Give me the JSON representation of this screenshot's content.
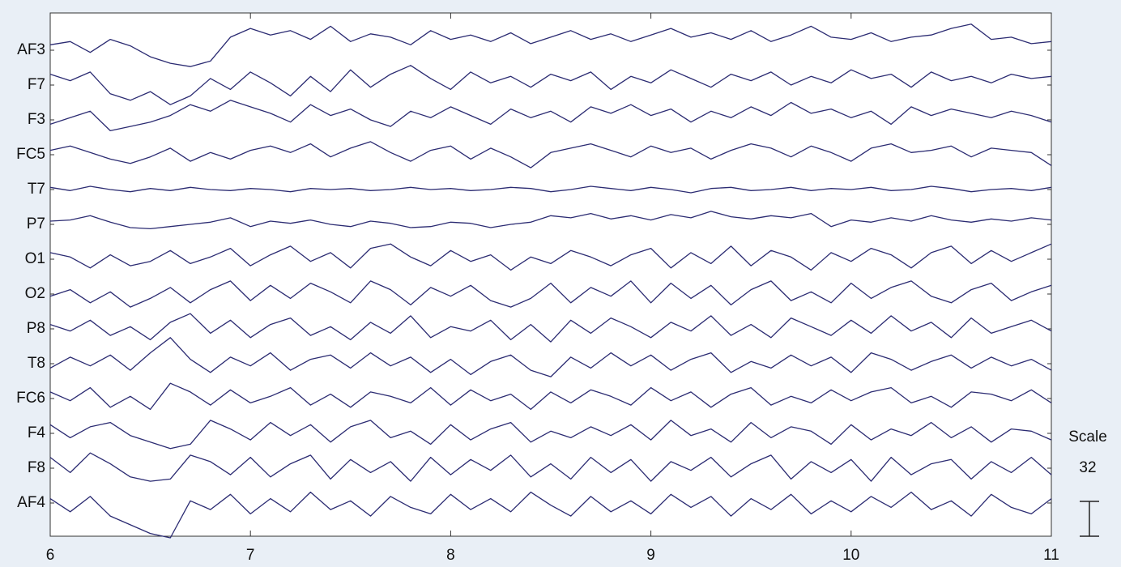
{
  "chart_data": {
    "type": "line",
    "color": "#2b2b72",
    "x": [
      6,
      6.1,
      6.2,
      6.3,
      6.4,
      6.5,
      6.6,
      6.7,
      6.8,
      6.9,
      7,
      7.1,
      7.2,
      7.3,
      7.4,
      7.5,
      7.6,
      7.7,
      7.8,
      7.9,
      8,
      8.1,
      8.2,
      8.3,
      8.4,
      8.5,
      8.6,
      8.7,
      8.8,
      8.9,
      9,
      9.1,
      9.2,
      9.3,
      9.4,
      9.5,
      9.6,
      9.7,
      9.8,
      9.9,
      10,
      10.1,
      10.2,
      10.3,
      10.4,
      10.5,
      10.6,
      10.7,
      10.8,
      10.9,
      11
    ],
    "xlim": [
      6,
      11
    ],
    "xticks": [
      6,
      7,
      8,
      9,
      10,
      11
    ],
    "scale": {
      "label": "Scale",
      "value": 32
    },
    "series": [
      {
        "name": "AF3",
        "values": [
          5,
          8,
          -2,
          10,
          4,
          -6,
          -12,
          -15,
          -10,
          12,
          20,
          14,
          18,
          10,
          22,
          8,
          15,
          12,
          5,
          18,
          10,
          14,
          8,
          16,
          6,
          12,
          18,
          10,
          15,
          8,
          14,
          20,
          12,
          16,
          10,
          18,
          8,
          14,
          22,
          12,
          10,
          16,
          8,
          12,
          14,
          20,
          24,
          10,
          12,
          6,
          8
        ]
      },
      {
        "name": "F7",
        "values": [
          10,
          4,
          12,
          -8,
          -14,
          -6,
          -18,
          -10,
          6,
          -4,
          12,
          2,
          -10,
          8,
          -6,
          14,
          -2,
          10,
          18,
          6,
          -4,
          12,
          2,
          8,
          -2,
          10,
          4,
          12,
          -4,
          8,
          2,
          14,
          6,
          -2,
          10,
          4,
          12,
          0,
          8,
          2,
          14,
          6,
          10,
          -2,
          12,
          4,
          8,
          2,
          10,
          6,
          8
        ]
      },
      {
        "name": "F3",
        "values": [
          -4,
          2,
          8,
          -10,
          -6,
          -2,
          4,
          14,
          8,
          18,
          12,
          6,
          -2,
          14,
          4,
          10,
          0,
          -6,
          8,
          2,
          12,
          4,
          -4,
          10,
          2,
          8,
          -2,
          12,
          6,
          14,
          4,
          10,
          -2,
          8,
          2,
          12,
          4,
          16,
          6,
          10,
          2,
          8,
          -4,
          12,
          4,
          10,
          6,
          2,
          8,
          4,
          -2
        ]
      },
      {
        "name": "FC5",
        "values": [
          4,
          8,
          2,
          -4,
          -8,
          -2,
          6,
          -6,
          2,
          -4,
          4,
          8,
          2,
          10,
          -2,
          6,
          12,
          2,
          -6,
          4,
          8,
          -4,
          6,
          -2,
          -12,
          2,
          6,
          10,
          4,
          -2,
          8,
          2,
          6,
          -4,
          4,
          10,
          6,
          -2,
          8,
          2,
          -6,
          6,
          10,
          2,
          4,
          8,
          -2,
          6,
          4,
          2,
          -10
        ]
      },
      {
        "name": "T7",
        "values": [
          2,
          -1,
          3,
          0,
          -2,
          1,
          -1,
          2,
          0,
          -1,
          1,
          0,
          -2,
          1,
          0,
          1,
          -1,
          0,
          2,
          0,
          1,
          -1,
          0,
          2,
          1,
          -2,
          0,
          3,
          1,
          -1,
          2,
          0,
          -3,
          1,
          2,
          -1,
          0,
          2,
          -1,
          1,
          0,
          2,
          -1,
          0,
          3,
          1,
          -2,
          0,
          1,
          -1,
          2
        ]
      },
      {
        "name": "P7",
        "values": [
          3,
          4,
          8,
          2,
          -3,
          -4,
          -2,
          0,
          2,
          6,
          -2,
          3,
          1,
          4,
          0,
          -2,
          3,
          1,
          -3,
          -2,
          2,
          1,
          -3,
          0,
          2,
          8,
          6,
          10,
          5,
          8,
          4,
          9,
          6,
          12,
          7,
          5,
          8,
          6,
          10,
          -2,
          4,
          2,
          6,
          3,
          8,
          4,
          2,
          5,
          3,
          6,
          4
        ]
      },
      {
        "name": "O1",
        "values": [
          6,
          2,
          -8,
          4,
          -6,
          -2,
          8,
          -4,
          2,
          10,
          -6,
          4,
          12,
          -2,
          6,
          -8,
          10,
          14,
          2,
          -6,
          8,
          -2,
          4,
          -10,
          2,
          -4,
          8,
          2,
          -6,
          4,
          10,
          -8,
          6,
          -4,
          12,
          -6,
          8,
          2,
          -10,
          6,
          -2,
          10,
          4,
          -8,
          6,
          12,
          -4,
          8,
          -2,
          6,
          14
        ]
      },
      {
        "name": "O2",
        "values": [
          -2,
          4,
          -8,
          2,
          -12,
          -4,
          6,
          -8,
          4,
          12,
          -6,
          8,
          -4,
          10,
          2,
          -8,
          12,
          4,
          -10,
          6,
          -2,
          8,
          -6,
          -12,
          -4,
          10,
          -8,
          6,
          -2,
          12,
          -8,
          10,
          -4,
          8,
          -10,
          4,
          12,
          -6,
          2,
          -8,
          10,
          -4,
          6,
          12,
          -2,
          -8,
          4,
          10,
          -6,
          2,
          8
        ]
      },
      {
        "name": "P8",
        "values": [
          4,
          -2,
          8,
          -6,
          2,
          -10,
          6,
          14,
          -4,
          8,
          -8,
          4,
          10,
          -6,
          2,
          -10,
          6,
          -4,
          12,
          -8,
          2,
          -2,
          8,
          -10,
          4,
          -12,
          8,
          -4,
          10,
          2,
          -8,
          6,
          -2,
          12,
          -6,
          4,
          -8,
          10,
          2,
          -6,
          8,
          -4,
          12,
          -2,
          6,
          -8,
          10,
          -4,
          2,
          8,
          -2
        ]
      },
      {
        "name": "T8",
        "values": [
          -4,
          6,
          -2,
          8,
          -6,
          10,
          24,
          4,
          -8,
          6,
          -2,
          10,
          -6,
          4,
          8,
          -4,
          10,
          -2,
          6,
          -8,
          4,
          -10,
          2,
          8,
          -6,
          -12,
          6,
          -4,
          10,
          -2,
          8,
          -6,
          4,
          10,
          -8,
          2,
          -4,
          8,
          -2,
          6,
          -8,
          10,
          4,
          -6,
          2,
          8,
          -4,
          6,
          -2,
          4,
          -6
        ]
      },
      {
        "name": "FC6",
        "values": [
          6,
          -2,
          10,
          -8,
          2,
          -10,
          14,
          6,
          -6,
          8,
          -4,
          2,
          10,
          -6,
          4,
          -8,
          6,
          2,
          -4,
          10,
          -6,
          8,
          -2,
          4,
          -10,
          6,
          -4,
          8,
          2,
          -6,
          10,
          -2,
          6,
          -8,
          4,
          10,
          -6,
          2,
          -4,
          8,
          -2,
          6,
          10,
          -4,
          2,
          -8,
          6,
          4,
          -2,
          8,
          -4
        ]
      },
      {
        "name": "F4",
        "values": [
          8,
          -4,
          6,
          10,
          -2,
          -8,
          -14,
          -10,
          12,
          4,
          -6,
          10,
          -2,
          8,
          -8,
          6,
          12,
          -4,
          2,
          -10,
          8,
          -6,
          4,
          10,
          -8,
          2,
          -4,
          6,
          -2,
          8,
          -6,
          12,
          -2,
          4,
          -8,
          10,
          -4,
          6,
          2,
          -10,
          8,
          -6,
          4,
          -2,
          10,
          -4,
          6,
          -8,
          4,
          2,
          -6
        ]
      },
      {
        "name": "F8",
        "values": [
          10,
          -4,
          14,
          4,
          -8,
          -12,
          -10,
          12,
          6,
          -6,
          10,
          -8,
          4,
          12,
          -10,
          8,
          -4,
          6,
          -12,
          10,
          -6,
          8,
          -2,
          12,
          -8,
          4,
          -10,
          10,
          -4,
          8,
          -12,
          6,
          -2,
          10,
          -8,
          4,
          12,
          -10,
          6,
          -4,
          8,
          -12,
          10,
          -6,
          4,
          8,
          -10,
          6,
          -4,
          10,
          -6
        ]
      },
      {
        "name": "AF4",
        "values": [
          4,
          -8,
          6,
          -12,
          -20,
          -28,
          -32,
          2,
          -6,
          8,
          -10,
          4,
          -8,
          10,
          -6,
          2,
          -12,
          6,
          -4,
          -10,
          8,
          -6,
          4,
          -8,
          10,
          -2,
          -12,
          6,
          -8,
          2,
          -10,
          8,
          -4,
          6,
          -12,
          4,
          -6,
          8,
          -10,
          2,
          -8,
          6,
          -4,
          10,
          -6,
          2,
          -12,
          8,
          -4,
          -10,
          4
        ]
      }
    ]
  }
}
